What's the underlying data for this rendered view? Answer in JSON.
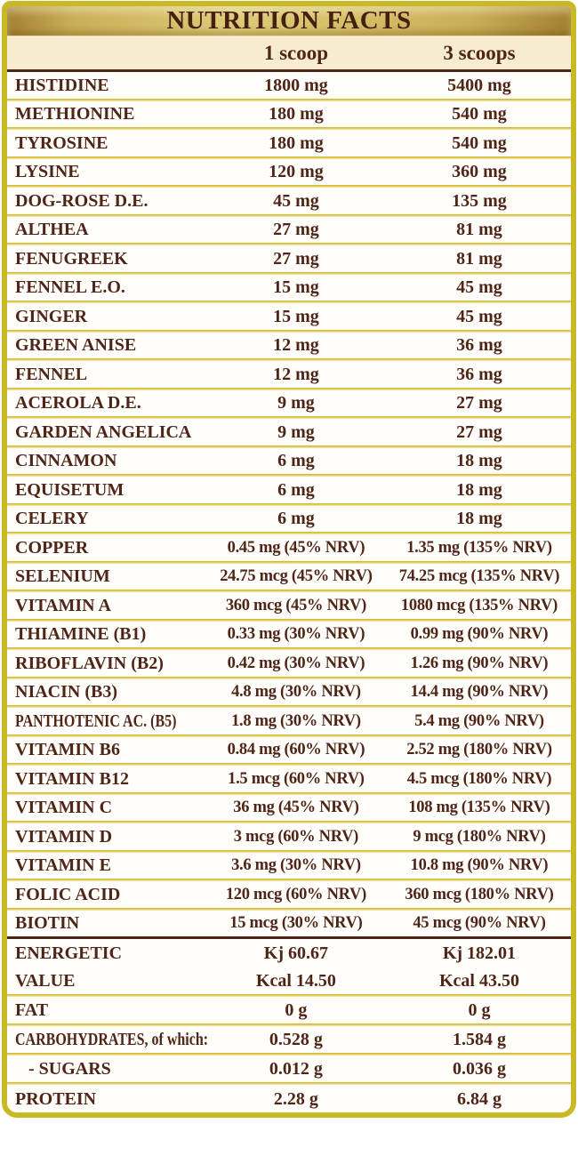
{
  "title": "NUTRITION FACTS",
  "columns": [
    "1 scoop",
    "3 scoops"
  ],
  "colors": {
    "border_yellow": "#c9b926",
    "band_gold_dark": "#a1802f",
    "band_gold_mid": "#c9ae57",
    "band_gold_light": "#ddcb78",
    "header_cream": "#f8ecd0",
    "text_brown": "#4f2518",
    "divider_gold": "#d8b733",
    "divider_pale": "#f0e49b",
    "rule_brown": "#4f2517",
    "row_bg": "#fffefa"
  },
  "table": {
    "rows": [
      {
        "label": "HISTIDINE",
        "scoop1": "1800 mg",
        "scoop3": "5400 mg"
      },
      {
        "label": "METHIONINE",
        "scoop1": "180 mg",
        "scoop3": "540 mg"
      },
      {
        "label": "TYROSINE",
        "scoop1": "180 mg",
        "scoop3": "540 mg"
      },
      {
        "label": "LYSINE",
        "scoop1": "120 mg",
        "scoop3": "360 mg"
      },
      {
        "label": "DOG-ROSE D.E.",
        "scoop1": "45 mg",
        "scoop3": "135 mg"
      },
      {
        "label": "ALTHEA",
        "scoop1": "27 mg",
        "scoop3": "81 mg"
      },
      {
        "label": "FENUGREEK",
        "scoop1": "27 mg",
        "scoop3": "81 mg"
      },
      {
        "label": "FENNEL E.O.",
        "scoop1": "15 mg",
        "scoop3": "45 mg"
      },
      {
        "label": "GINGER",
        "scoop1": "15 mg",
        "scoop3": "45 mg"
      },
      {
        "label": "GREEN ANISE",
        "scoop1": "12 mg",
        "scoop3": "36 mg"
      },
      {
        "label": "FENNEL",
        "scoop1": "12 mg",
        "scoop3": "36 mg"
      },
      {
        "label": "ACEROLA D.E.",
        "scoop1": "9 mg",
        "scoop3": "27 mg"
      },
      {
        "label": "GARDEN ANGELICA",
        "scoop1": "9 mg",
        "scoop3": "27 mg"
      },
      {
        "label": "CINNAMON",
        "scoop1": "6 mg",
        "scoop3": "18 mg"
      },
      {
        "label": "EQUISETUM",
        "scoop1": "6 mg",
        "scoop3": "18 mg"
      },
      {
        "label": "CELERY",
        "scoop1": "6 mg",
        "scoop3": "18 mg"
      },
      {
        "label": "COPPER",
        "scoop1": "0.45 mg (45% NRV)",
        "scoop3": "1.35 mg (135% NRV)"
      },
      {
        "label": "SELENIUM",
        "scoop1": "24.75 mcg (45% NRV)",
        "scoop3": "74.25 mcg (135% NRV)"
      },
      {
        "label": "VITAMIN A",
        "scoop1": "360 mcg (45% NRV)",
        "scoop3": "1080 mcg (135% NRV)"
      },
      {
        "label": "THIAMINE (B1)",
        "scoop1": "0.33 mg (30% NRV)",
        "scoop3": "0.99 mg (90% NRV)"
      },
      {
        "label": "RIBOFLAVIN (B2)",
        "scoop1": "0.42 mg (30% NRV)",
        "scoop3": "1.26 mg (90% NRV)"
      },
      {
        "label": "NIACIN (B3)",
        "scoop1": "4.8 mg (30% NRV)",
        "scoop3": "14.4 mg (90% NRV)"
      },
      {
        "label": "PANTHOTENIC AC. (B5)",
        "scoop1": "1.8 mg (30% NRV)",
        "scoop3": "5.4 mg (90% NRV)"
      },
      {
        "label": "VITAMIN B6",
        "scoop1": "0.84 mg (60% NRV)",
        "scoop3": "2.52 mg (180% NRV)"
      },
      {
        "label": "VITAMIN B12",
        "scoop1": "1.5 mcg (60% NRV)",
        "scoop3": "4.5 mcg (180% NRV)"
      },
      {
        "label": "VITAMIN C",
        "scoop1": "36 mg (45% NRV)",
        "scoop3": "108 mg (135% NRV)"
      },
      {
        "label": "VITAMIN D",
        "scoop1": "3 mcg (60% NRV)",
        "scoop3": "9 mcg (180% NRV)"
      },
      {
        "label": "VITAMIN E",
        "scoop1": "3.6 mg (30% NRV)",
        "scoop3": "10.8 mg (90% NRV)"
      },
      {
        "label": "FOLIC ACID",
        "scoop1": "120 mcg (60% NRV)",
        "scoop3": "360 mcg (180% NRV)"
      },
      {
        "label": "BIOTIN",
        "scoop1": "15 mcg (30% NRV)",
        "scoop3": "45 mcg (90% NRV)"
      }
    ],
    "energy_rows": [
      {
        "label": "ENERGETIC",
        "scoop1": "Kj 60.67",
        "scoop3": "Kj 182.01"
      },
      {
        "label": "VALUE",
        "scoop1": "Kcal 14.50",
        "scoop3": "Kcal 43.50"
      }
    ],
    "macro_rows": [
      {
        "label": "FAT",
        "scoop1": "0 g",
        "scoop3": "0 g"
      },
      {
        "label": "CARBOHYDRATES, of which:",
        "scoop1": "0.528 g",
        "scoop3": "1.584 g"
      },
      {
        "label": "- SUGARS",
        "scoop1": "0.012 g",
        "scoop3": "0.036 g"
      },
      {
        "label": "PROTEIN",
        "scoop1": "2.28 g",
        "scoop3": "6.84 g"
      }
    ]
  }
}
